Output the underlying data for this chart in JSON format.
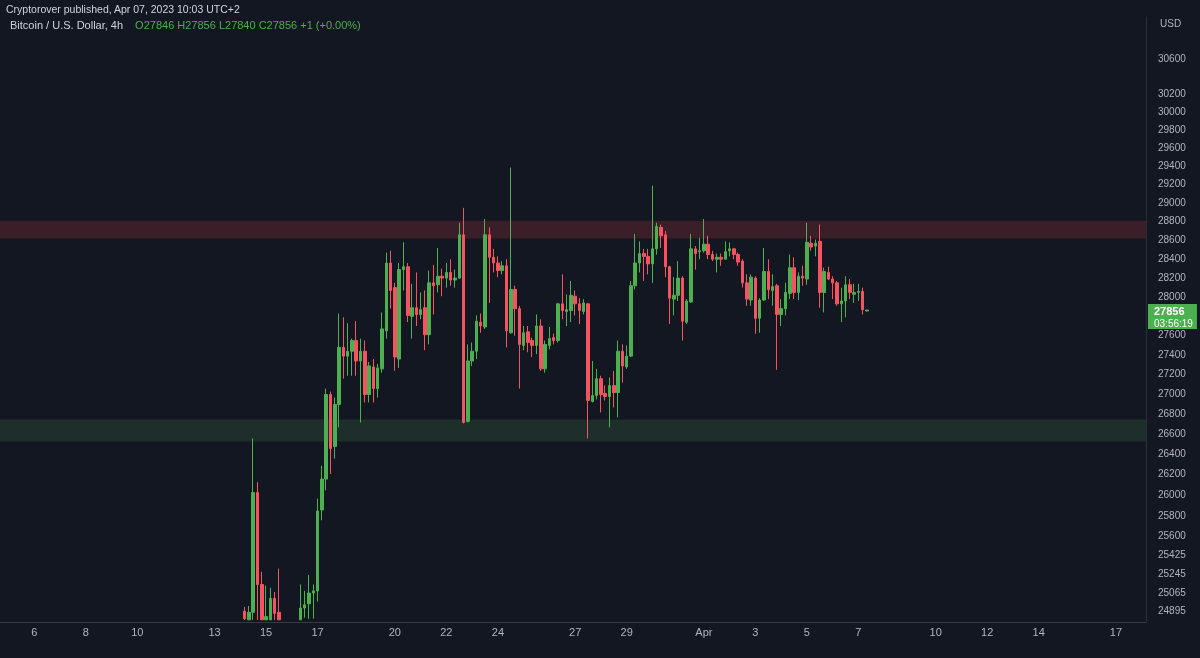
{
  "chart_data": {
    "type": "candlestick",
    "title": "Bitcoin / U.S. Dollar, 4h",
    "subtitle": "O27846 H27856 L27840 C27856 +1 (+0.00%)",
    "ylabel": "USD",
    "annotations": [
      "Cryptorover published, Apr 07, 2023 10:03 UTC+2",
      "27856",
      "03:56:19"
    ],
    "log": true,
    "xlim": [
      "2023-03-04T16:00",
      "2023-04-18T04:00"
    ],
    "xticks": [
      {
        "value": "2023-03-06",
        "label": "6"
      },
      {
        "value": "2023-03-08",
        "label": "8"
      },
      {
        "value": "2023-03-10",
        "label": "10"
      },
      {
        "value": "2023-03-13",
        "label": "13"
      },
      {
        "value": "2023-03-15",
        "label": "15"
      },
      {
        "value": "2023-03-17",
        "label": "17"
      },
      {
        "value": "2023-03-20",
        "label": "20"
      },
      {
        "value": "2023-03-22",
        "label": "22"
      },
      {
        "value": "2023-03-24",
        "label": "24"
      },
      {
        "value": "2023-03-27",
        "label": "27"
      },
      {
        "value": "2023-03-29",
        "label": "29"
      },
      {
        "value": "2023-04-01",
        "label": "Apr"
      },
      {
        "value": "2023-04-03",
        "label": "3"
      },
      {
        "value": "2023-04-05",
        "label": "5"
      },
      {
        "value": "2023-04-07",
        "label": "7"
      },
      {
        "value": "2023-04-10",
        "label": "10"
      },
      {
        "value": "2023-04-12",
        "label": "12"
      },
      {
        "value": "2023-04-14",
        "label": "14"
      },
      {
        "value": "2023-04-17",
        "label": "17"
      }
    ],
    "ylim": [
      24790,
      31080
    ],
    "yticks": [
      24895,
      25065,
      25245,
      25425,
      25600,
      25800,
      26000,
      26200,
      26400,
      26600,
      26800,
      27000,
      27200,
      27400,
      27600,
      28000,
      28200,
      28400,
      28600,
      28800,
      29000,
      29200,
      29400,
      29600,
      29800,
      30000,
      30200,
      30600
    ],
    "bands": [
      {
        "axis": "y",
        "from": 28610,
        "to": 28800,
        "color": "#3a1e28"
      },
      {
        "axis": "y",
        "from": 26520,
        "to": 26740,
        "color": "#1e2e2a"
      }
    ],
    "x": [
      "2023-03-14T04:00",
      "2023-03-14T08:00",
      "2023-03-14T12:00",
      "2023-03-14T16:00",
      "2023-03-14T20:00",
      "2023-03-15T00:00",
      "2023-03-15T04:00",
      "2023-03-15T08:00",
      "2023-03-15T12:00",
      "2023-03-16T08:00",
      "2023-03-16T12:00",
      "2023-03-16T16:00",
      "2023-03-16T20:00",
      "2023-03-17T00:00",
      "2023-03-17T04:00",
      "2023-03-17T08:00",
      "2023-03-17T12:00",
      "2023-03-17T16:00",
      "2023-03-17T20:00",
      "2023-03-18T00:00",
      "2023-03-18T04:00",
      "2023-03-18T08:00",
      "2023-03-18T12:00",
      "2023-03-18T16:00",
      "2023-03-18T20:00",
      "2023-03-19T00:00",
      "2023-03-19T04:00",
      "2023-03-19T08:00",
      "2023-03-19T12:00",
      "2023-03-19T16:00",
      "2023-03-19T20:00",
      "2023-03-20T00:00",
      "2023-03-20T04:00",
      "2023-03-20T08:00",
      "2023-03-20T12:00",
      "2023-03-20T16:00",
      "2023-03-20T20:00",
      "2023-03-21T00:00",
      "2023-03-21T04:00",
      "2023-03-21T08:00",
      "2023-03-21T12:00",
      "2023-03-21T16:00",
      "2023-03-21T20:00",
      "2023-03-22T00:00",
      "2023-03-22T04:00",
      "2023-03-22T08:00",
      "2023-03-22T12:00",
      "2023-03-22T16:00",
      "2023-03-22T20:00",
      "2023-03-23T00:00",
      "2023-03-23T04:00",
      "2023-03-23T08:00",
      "2023-03-23T12:00",
      "2023-03-23T16:00",
      "2023-03-23T20:00",
      "2023-03-24T00:00",
      "2023-03-24T04:00",
      "2023-03-24T08:00",
      "2023-03-24T12:00",
      "2023-03-24T16:00",
      "2023-03-24T20:00",
      "2023-03-25T00:00",
      "2023-03-25T04:00",
      "2023-03-25T08:00",
      "2023-03-25T12:00",
      "2023-03-25T16:00",
      "2023-03-25T20:00",
      "2023-03-26T00:00",
      "2023-03-26T04:00",
      "2023-03-26T08:00",
      "2023-03-26T12:00",
      "2023-03-26T16:00",
      "2023-03-26T20:00",
      "2023-03-27T00:00",
      "2023-03-27T04:00",
      "2023-03-27T08:00",
      "2023-03-27T12:00",
      "2023-03-27T16:00",
      "2023-03-27T20:00",
      "2023-03-28T00:00",
      "2023-03-28T04:00",
      "2023-03-28T08:00",
      "2023-03-28T12:00",
      "2023-03-28T16:00",
      "2023-03-28T20:00",
      "2023-03-29T00:00",
      "2023-03-29T04:00",
      "2023-03-29T08:00",
      "2023-03-29T12:00",
      "2023-03-29T16:00",
      "2023-03-29T20:00",
      "2023-03-30T00:00",
      "2023-03-30T04:00",
      "2023-03-30T08:00",
      "2023-03-30T12:00",
      "2023-03-30T16:00",
      "2023-03-30T20:00",
      "2023-03-31T00:00",
      "2023-03-31T04:00",
      "2023-03-31T08:00",
      "2023-03-31T12:00",
      "2023-03-31T16:00",
      "2023-03-31T20:00",
      "2023-04-01T00:00",
      "2023-04-01T04:00",
      "2023-04-01T08:00",
      "2023-04-01T12:00",
      "2023-04-01T16:00",
      "2023-04-01T20:00",
      "2023-04-02T00:00",
      "2023-04-02T04:00",
      "2023-04-02T08:00",
      "2023-04-02T12:00",
      "2023-04-02T16:00",
      "2023-04-02T20:00",
      "2023-04-03T00:00",
      "2023-04-03T04:00",
      "2023-04-03T08:00",
      "2023-04-03T12:00",
      "2023-04-03T16:00",
      "2023-04-03T20:00",
      "2023-04-04T00:00",
      "2023-04-04T04:00",
      "2023-04-04T08:00",
      "2023-04-04T12:00",
      "2023-04-04T16:00",
      "2023-04-04T20:00",
      "2023-04-05T00:00",
      "2023-04-05T04:00",
      "2023-04-05T08:00",
      "2023-04-05T12:00",
      "2023-04-05T16:00",
      "2023-04-05T20:00",
      "2023-04-06T00:00",
      "2023-04-06T04:00",
      "2023-04-06T08:00",
      "2023-04-06T12:00",
      "2023-04-06T16:00",
      "2023-04-06T20:00",
      "2023-04-07T00:00",
      "2023-04-07T04:00",
      "2023-04-07T08:00"
    ],
    "ohlc": [
      [
        24890,
        24930,
        24810,
        24820
      ],
      [
        24810,
        24940,
        24810,
        24880
      ],
      [
        24880,
        26550,
        24810,
        26020
      ],
      [
        26020,
        26120,
        24810,
        25140
      ],
      [
        25140,
        25260,
        24810,
        24810
      ],
      [
        24810,
        25130,
        24810,
        24840
      ],
      [
        24810,
        25110,
        24810,
        25010
      ],
      [
        25010,
        25070,
        24810,
        24870
      ],
      [
        24880,
        25290,
        24810,
        24810
      ],
      [
        24810,
        25140,
        24810,
        24920
      ],
      [
        24920,
        25080,
        24830,
        24950
      ],
      [
        24960,
        25230,
        24820,
        25060
      ],
      [
        25060,
        25140,
        24820,
        25080
      ],
      [
        25080,
        25960,
        24980,
        25840
      ],
      [
        25850,
        26280,
        25750,
        26150
      ],
      [
        26150,
        27050,
        26040,
        26990
      ],
      [
        26990,
        27020,
        26200,
        26450
      ],
      [
        26470,
        26960,
        26350,
        26890
      ],
      [
        26890,
        27820,
        26660,
        27470
      ],
      [
        27470,
        27780,
        27150,
        27380
      ],
      [
        27380,
        27720,
        27180,
        27430
      ],
      [
        27430,
        27560,
        27180,
        27540
      ],
      [
        27540,
        27740,
        27180,
        27330
      ],
      [
        27330,
        27560,
        26710,
        27430
      ],
      [
        27430,
        27540,
        26910,
        26990
      ],
      [
        26990,
        27320,
        26910,
        27280
      ],
      [
        27270,
        27350,
        26910,
        27050
      ],
      [
        27050,
        27300,
        26960,
        27260
      ],
      [
        27250,
        27830,
        27210,
        27660
      ],
      [
        27640,
        28460,
        27560,
        28350
      ],
      [
        28350,
        28480,
        27870,
        28060
      ],
      [
        28090,
        28140,
        27230,
        27370
      ],
      [
        27350,
        28350,
        27260,
        28280
      ],
      [
        28280,
        28570,
        28060,
        28310
      ],
      [
        28310,
        28350,
        27730,
        27800
      ],
      [
        27790,
        28130,
        27560,
        27880
      ],
      [
        27880,
        28250,
        27690,
        27810
      ],
      [
        27810,
        28040,
        27760,
        27860
      ],
      [
        27880,
        28060,
        27440,
        27600
      ],
      [
        27600,
        28270,
        27500,
        28140
      ],
      [
        28140,
        28330,
        27810,
        28110
      ],
      [
        28120,
        28510,
        28040,
        28210
      ],
      [
        28210,
        28290,
        28000,
        28190
      ],
      [
        28190,
        28350,
        28090,
        28250
      ],
      [
        28250,
        28390,
        28110,
        28170
      ],
      [
        28170,
        28280,
        28090,
        28190
      ],
      [
        28190,
        28780,
        28180,
        28650
      ],
      [
        28650,
        28940,
        26700,
        26710
      ],
      [
        26720,
        27500,
        26710,
        27330
      ],
      [
        27330,
        27520,
        27280,
        27430
      ],
      [
        27430,
        27800,
        27350,
        27740
      ],
      [
        27730,
        27820,
        27620,
        27690
      ],
      [
        27680,
        28820,
        27660,
        28650
      ],
      [
        28650,
        28730,
        27930,
        28410
      ],
      [
        28410,
        28500,
        28250,
        28350
      ],
      [
        28350,
        28420,
        28200,
        28270
      ],
      [
        28270,
        28370,
        28230,
        28320
      ],
      [
        28320,
        28390,
        27470,
        27640
      ],
      [
        27620,
        29380,
        27610,
        28070
      ],
      [
        28070,
        28110,
        27590,
        27870
      ],
      [
        27870,
        27900,
        27050,
        27500
      ],
      [
        27490,
        27690,
        27440,
        27620
      ],
      [
        27630,
        27690,
        27420,
        27520
      ],
      [
        27540,
        27570,
        27370,
        27490
      ],
      [
        27490,
        27810,
        27400,
        27690
      ],
      [
        27690,
        27760,
        27230,
        27250
      ],
      [
        27250,
        27540,
        27210,
        27500
      ],
      [
        27490,
        27680,
        27450,
        27560
      ],
      [
        27570,
        27610,
        27500,
        27540
      ],
      [
        27540,
        27930,
        27520,
        27920
      ],
      [
        27920,
        28230,
        27760,
        27850
      ],
      [
        27840,
        28020,
        27690,
        27860
      ],
      [
        27850,
        28160,
        27730,
        28010
      ],
      [
        28000,
        28060,
        27800,
        27920
      ],
      [
        27920,
        27980,
        27710,
        27850
      ],
      [
        27840,
        27970,
        27810,
        27930
      ],
      [
        27920,
        27930,
        26550,
        26930
      ],
      [
        26920,
        27330,
        26910,
        26980
      ],
      [
        26980,
        27250,
        26940,
        27150
      ],
      [
        27150,
        27180,
        26810,
        26990
      ],
      [
        27000,
        27080,
        26930,
        26970
      ],
      [
        26970,
        27160,
        26660,
        27080
      ],
      [
        27080,
        27230,
        26860,
        27010
      ],
      [
        27010,
        27540,
        26760,
        27430
      ],
      [
        27430,
        27500,
        27110,
        27280
      ],
      [
        27270,
        27490,
        27250,
        27380
      ],
      [
        27380,
        28160,
        27370,
        28110
      ],
      [
        28110,
        28660,
        28070,
        28350
      ],
      [
        28350,
        28580,
        28250,
        28450
      ],
      [
        28450,
        28500,
        28160,
        28420
      ],
      [
        28420,
        28500,
        28230,
        28340
      ],
      [
        28340,
        29180,
        28140,
        28500
      ],
      [
        28500,
        28780,
        28440,
        28740
      ],
      [
        28730,
        28760,
        28510,
        28640
      ],
      [
        28650,
        28690,
        28200,
        28310
      ],
      [
        28310,
        28320,
        27710,
        27980
      ],
      [
        27970,
        28200,
        27800,
        28010
      ],
      [
        28010,
        28370,
        27950,
        28190
      ],
      [
        28190,
        28210,
        27540,
        27740
      ],
      [
        27730,
        27970,
        27710,
        27950
      ],
      [
        27940,
        28660,
        27930,
        28500
      ],
      [
        28500,
        28530,
        28280,
        28450
      ],
      [
        28470,
        28620,
        28390,
        28480
      ],
      [
        28480,
        28820,
        28460,
        28550
      ],
      [
        28550,
        28640,
        28390,
        28440
      ],
      [
        28440,
        28480,
        28370,
        28390
      ],
      [
        28390,
        28450,
        28250,
        28410
      ],
      [
        28410,
        28450,
        28320,
        28390
      ],
      [
        28390,
        28580,
        28390,
        28470
      ],
      [
        28480,
        28570,
        28420,
        28500
      ],
      [
        28500,
        28510,
        28390,
        28440
      ],
      [
        28440,
        28460,
        28320,
        28360
      ],
      [
        28370,
        28390,
        28090,
        28140
      ],
      [
        28140,
        28230,
        27900,
        27970
      ],
      [
        27960,
        28230,
        27900,
        28200
      ],
      [
        28190,
        28210,
        27610,
        27770
      ],
      [
        27770,
        27980,
        27620,
        27960
      ],
      [
        27960,
        28510,
        27950,
        28260
      ],
      [
        28260,
        28390,
        27970,
        28070
      ],
      [
        28060,
        28230,
        27900,
        28100
      ],
      [
        28110,
        28130,
        27240,
        27810
      ],
      [
        27810,
        27970,
        27690,
        27870
      ],
      [
        27870,
        28140,
        27800,
        28040
      ],
      [
        28030,
        28440,
        27970,
        28300
      ],
      [
        28300,
        28410,
        27970,
        28040
      ],
      [
        28040,
        28250,
        27960,
        28210
      ],
      [
        28210,
        28320,
        28110,
        28190
      ],
      [
        28180,
        28780,
        28120,
        28570
      ],
      [
        28560,
        28640,
        28480,
        28520
      ],
      [
        28530,
        28600,
        28420,
        28560
      ],
      [
        28580,
        28760,
        27880,
        28040
      ],
      [
        28040,
        28300,
        27830,
        28260
      ],
      [
        28250,
        28310,
        28170,
        28180
      ],
      [
        28180,
        28210,
        27970,
        28140
      ],
      [
        28140,
        28160,
        27900,
        27920
      ],
      [
        27920,
        28090,
        27730,
        27950
      ],
      [
        27950,
        28210,
        27780,
        28120
      ],
      [
        28120,
        28180,
        27970,
        28040
      ],
      [
        28020,
        28130,
        27930,
        28040
      ],
      [
        28040,
        28130,
        27950,
        28050
      ],
      [
        28050,
        28090,
        27810,
        27860
      ],
      [
        27846,
        27856,
        27840,
        27856
      ]
    ],
    "colors": [
      "#f7525f",
      "#4caf50",
      "#4caf50",
      "#f7525f",
      "#f7525f",
      "#4caf50",
      "#4caf50",
      "#f7525f",
      "#f7525f",
      "#4caf50",
      "#4caf50",
      "#4caf50",
      "#4caf50",
      "#4caf50",
      "#4caf50",
      "#4caf50",
      "#f7525f",
      "#4caf50",
      "#4caf50",
      "#f7525f",
      "#4caf50",
      "#4caf50",
      "#f7525f",
      "#4caf50",
      "#f7525f",
      "#4caf50",
      "#f7525f",
      "#4caf50",
      "#4caf50",
      "#4caf50",
      "#f7525f",
      "#f7525f",
      "#4caf50",
      "#4caf50",
      "#f7525f",
      "#4caf50",
      "#f7525f",
      "#4caf50",
      "#f7525f",
      "#4caf50",
      "#f7525f",
      "#4caf50",
      "#f7525f",
      "#4caf50",
      "#f7525f",
      "#4caf50",
      "#4caf50",
      "#f7525f",
      "#4caf50",
      "#4caf50",
      "#4caf50",
      "#f7525f",
      "#4caf50",
      "#f7525f",
      "#f7525f",
      "#f7525f",
      "#4caf50",
      "#f7525f",
      "#4caf50",
      "#f7525f",
      "#f7525f",
      "#4caf50",
      "#f7525f",
      "#f7525f",
      "#4caf50",
      "#f7525f",
      "#4caf50",
      "#4caf50",
      "#f7525f",
      "#4caf50",
      "#f7525f",
      "#4caf50",
      "#4caf50",
      "#f7525f",
      "#f7525f",
      "#4caf50",
      "#f7525f",
      "#4caf50",
      "#4caf50",
      "#f7525f",
      "#f7525f",
      "#4caf50",
      "#f7525f",
      "#4caf50",
      "#f7525f",
      "#4caf50",
      "#4caf50",
      "#4caf50",
      "#4caf50",
      "#f7525f",
      "#f7525f",
      "#4caf50",
      "#4caf50",
      "#f7525f",
      "#f7525f",
      "#f7525f",
      "#4caf50",
      "#4caf50",
      "#f7525f",
      "#4caf50",
      "#4caf50",
      "#f7525f",
      "#4caf50",
      "#4caf50",
      "#f7525f",
      "#f7525f",
      "#4caf50",
      "#f7525f",
      "#4caf50",
      "#4caf50",
      "#f7525f",
      "#f7525f",
      "#f7525f",
      "#f7525f",
      "#4caf50",
      "#f7525f",
      "#4caf50",
      "#4caf50",
      "#f7525f",
      "#4caf50",
      "#f7525f",
      "#4caf50",
      "#4caf50",
      "#4caf50",
      "#f7525f",
      "#4caf50",
      "#f7525f",
      "#4caf50",
      "#f7525f",
      "#4caf50",
      "#f7525f",
      "#4caf50",
      "#f7525f",
      "#f7525f",
      "#f7525f",
      "#4caf50",
      "#4caf50",
      "#f7525f",
      "#4caf50",
      "#4caf50",
      "#f7525f",
      "#4caf50"
    ]
  }
}
